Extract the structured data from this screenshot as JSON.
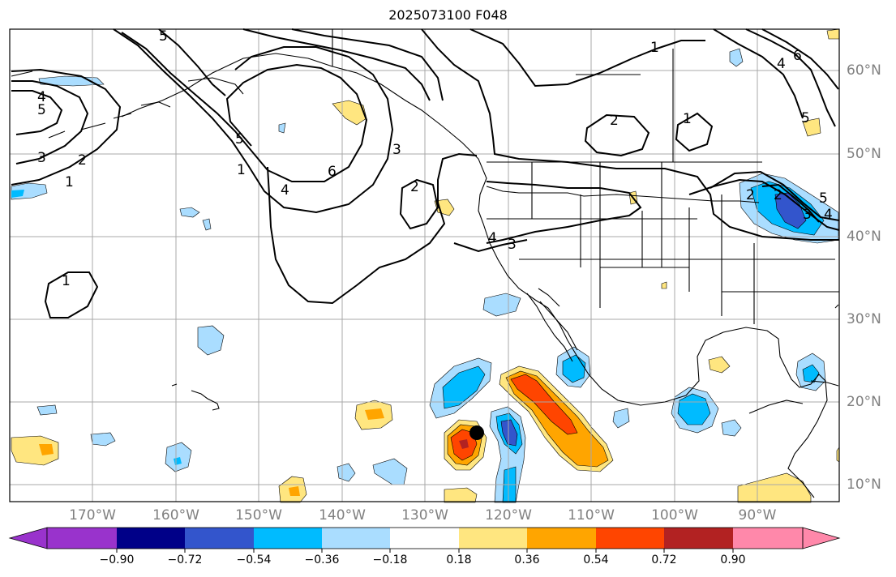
{
  "title": "2025073100 F048",
  "axes": {
    "lon_ticks": [
      "170°W",
      "160°W",
      "150°W",
      "140°W",
      "130°W",
      "120°W",
      "110°W",
      "100°W",
      "90°W"
    ],
    "lat_ticks": [
      "60°N",
      "50°N",
      "40°N",
      "30°N",
      "20°N",
      "10°N"
    ]
  },
  "contours": {
    "color": "#000000",
    "labels": [
      "4",
      "5",
      "3",
      "2",
      "1",
      "5",
      "1",
      "4",
      "6",
      "3",
      "5",
      "2",
      "1",
      "2",
      "3",
      "4",
      "1",
      "2",
      "1",
      "6",
      "4",
      "5",
      "2",
      "3",
      "4",
      "5"
    ]
  },
  "colorbar": {
    "tick_labels": [
      "−0.90",
      "−0.72",
      "−0.54",
      "−0.36",
      "−0.18",
      "0.18",
      "0.36",
      "0.54",
      "0.72",
      "0.90"
    ],
    "colors": [
      "#9933cc",
      "#000088",
      "#3355cc",
      "#00bbff",
      "#aaddff",
      "#ffffff",
      "#ffe680",
      "#ffa500",
      "#ff4500",
      "#b22222",
      "#ff88aa"
    ]
  },
  "marker": {
    "color": "#000000"
  }
}
